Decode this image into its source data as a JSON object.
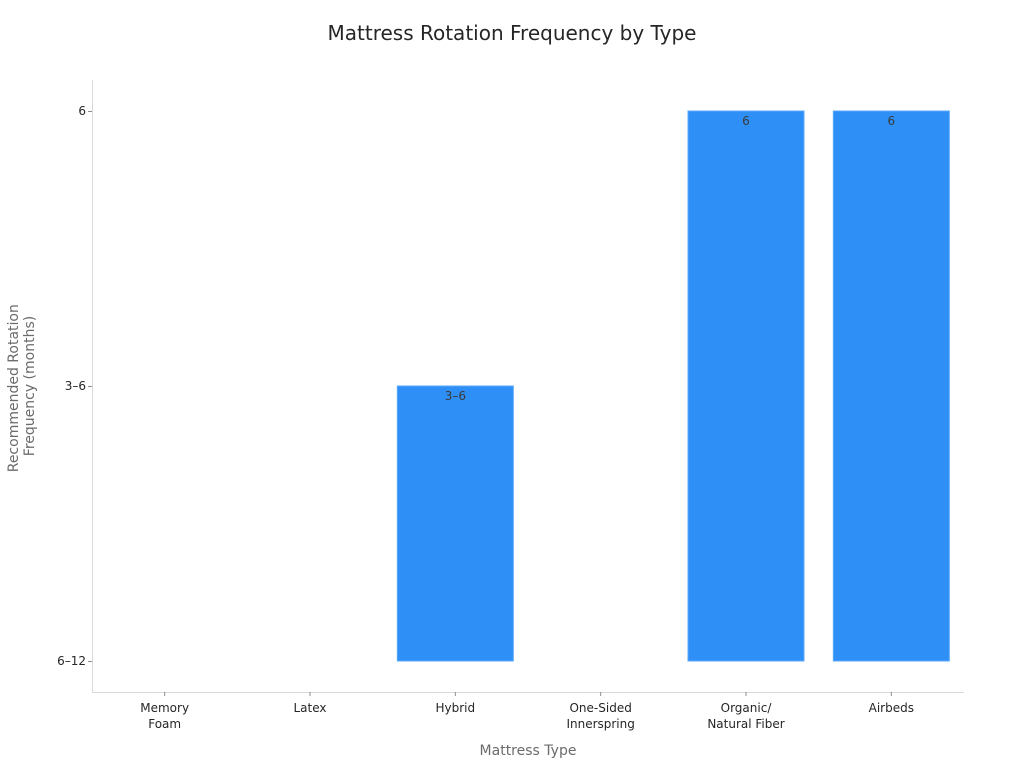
{
  "colors": {
    "bar": "#2E90F7",
    "bar_edge": "#5AA8FA",
    "axis": "#d9d9d9",
    "text": "#262626",
    "muted_text": "#6b6b6b"
  },
  "chart_data": {
    "type": "bar",
    "title": "Mattress Rotation Frequency by Type",
    "xlabel": "Mattress Type",
    "ylabel": [
      "Recommended Rotation",
      "Frequency (months)"
    ],
    "y_axis": {
      "kind": "categorical",
      "ticks": [
        "6–12",
        "3–6",
        "6"
      ]
    },
    "categories": [
      [
        "Memory",
        "Foam"
      ],
      [
        "Latex"
      ],
      [
        "Hybrid"
      ],
      [
        "One-Sided",
        "Innerspring"
      ],
      [
        "Organic/",
        "Natural Fiber"
      ],
      [
        "Airbeds"
      ]
    ],
    "values": [
      null,
      null,
      "3–6",
      null,
      "6",
      "6"
    ],
    "data_labels": [
      null,
      null,
      "3–6",
      null,
      "6",
      "6"
    ],
    "grid": false,
    "legend": "none"
  }
}
